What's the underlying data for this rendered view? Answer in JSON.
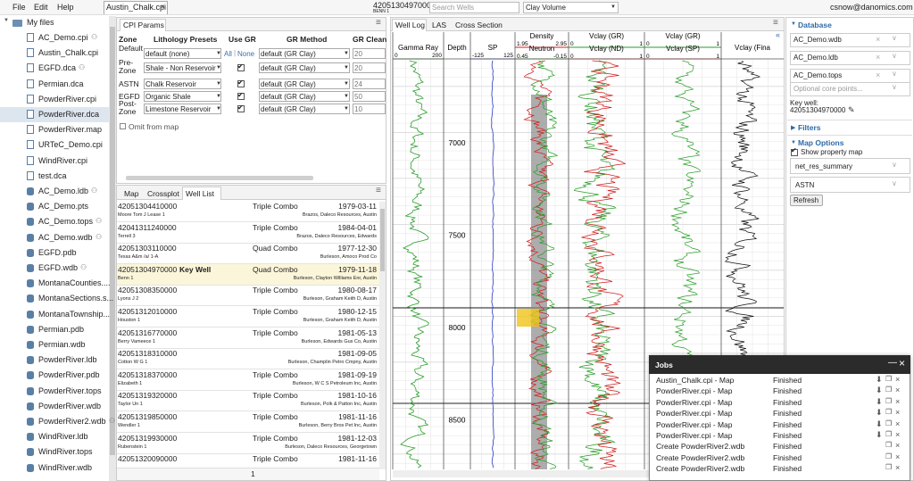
{
  "menu": [
    "File",
    "Edit",
    "Help"
  ],
  "open_tab": "Austin_Chalk.cpi",
  "well_header": {
    "uwi": "42051304970000",
    "name": "BENN 1"
  },
  "search_placeholder": "Search Wells",
  "curve_select": "Clay Volume",
  "user": "csnow@danomics.com",
  "files": {
    "root": "My files",
    "selected": 5,
    "items": [
      {
        "name": "AC_Demo.cpi",
        "shared": true
      },
      {
        "name": "Austin_Chalk.cpi"
      },
      {
        "name": "EGFD.dca",
        "shared": true
      },
      {
        "name": "Permian.dca"
      },
      {
        "name": "PowderRiver.cpi"
      },
      {
        "name": "PowderRiver.dca"
      },
      {
        "name": "PowderRiver.map"
      },
      {
        "name": "URTeC_Demo.cpi"
      },
      {
        "name": "WindRiver.cpi"
      },
      {
        "name": "test.dca"
      },
      {
        "name": "AC_Demo.ldb",
        "db": true,
        "shared": true
      },
      {
        "name": "AC_Demo.pts",
        "db": true
      },
      {
        "name": "AC_Demo.tops",
        "db": true,
        "shared": true
      },
      {
        "name": "AC_Demo.wdb",
        "db": true,
        "shared": true
      },
      {
        "name": "EGFD.pdb",
        "db": true
      },
      {
        "name": "EGFD.wdb",
        "db": true,
        "shared": true
      },
      {
        "name": "MontanaCounties....",
        "db": true
      },
      {
        "name": "MontanaSections.s...",
        "db": true
      },
      {
        "name": "MontanaTownship...",
        "db": true
      },
      {
        "name": "Permian.pdb",
        "db": true
      },
      {
        "name": "Permian.wdb",
        "db": true
      },
      {
        "name": "PowderRiver.ldb",
        "db": true
      },
      {
        "name": "PowderRiver.pdb",
        "db": true
      },
      {
        "name": "PowderRiver.tops",
        "db": true
      },
      {
        "name": "PowderRiver.wdb",
        "db": true
      },
      {
        "name": "PowderRiver2.wdb",
        "db": true,
        "shared": true
      },
      {
        "name": "WindRiver.ldb",
        "db": true
      },
      {
        "name": "WindRiver.tops",
        "db": true
      },
      {
        "name": "WindRiver.wdb",
        "db": true
      }
    ]
  },
  "cpi": {
    "tab": "CPI Params",
    "headers": [
      "Zone",
      "Lithology Presets",
      "Use GR",
      "GR Method",
      "GR Clean"
    ],
    "rows": [
      {
        "zone": "Default",
        "preset": "default (none)",
        "gr_links": [
          "All",
          "None"
        ],
        "method": "default (GR Clay)",
        "clean": "20"
      },
      {
        "zone": "Pre-Zone",
        "preset": "Shale - Non Reservoir",
        "use_gr": true,
        "method": "default (GR Clay)",
        "clean": "20"
      },
      {
        "zone": "ASTN",
        "preset": "Chalk Reservoir",
        "use_gr": true,
        "method": "default (GR Clay)",
        "clean": "24"
      },
      {
        "zone": "EGFD",
        "preset": "Organic Shale",
        "use_gr": true,
        "method": "default (GR Clay)",
        "clean": "50"
      },
      {
        "zone": "Post-Zone",
        "preset": "Limestone Reservoir",
        "use_gr": true,
        "method": "default (GR Clay)",
        "clean": "10"
      }
    ],
    "omit": "Omit from map"
  },
  "well_list": {
    "tabs": [
      "Map",
      "Crossplot",
      "Well List"
    ],
    "active": 2,
    "page": "1",
    "rows": [
      {
        "uwi": "42051304410000",
        "log": "Triple Combo",
        "date": "1979-03-11",
        "lease": "Moore Tom J Lease 1",
        "location": "Brazos, Daleco Resources, Austin"
      },
      {
        "uwi": "42041311240000",
        "log": "Triple Combo",
        "date": "1984-04-01",
        "lease": "Terrell 3",
        "location": "Brazos, Daleco Resources, Edwards"
      },
      {
        "uwi": "42051303110000",
        "log": "Quad Combo",
        "date": "1977-12-30",
        "lease": "Texas A&m /a/ 1-A",
        "location": "Burleson, Amoco Prod Co"
      },
      {
        "uwi": "42051304970000",
        "tag": "Key Well",
        "highlight": true,
        "log": "Quad Combo",
        "date": "1979-11-18",
        "lease": "Benn 1",
        "location": "Burleson, Clayton Williams Enr, Austin"
      },
      {
        "uwi": "42051308350000",
        "log": "Triple Combo",
        "date": "1980-08-17",
        "lease": "Lyons J 2",
        "location": "Burleson, Graham Keith D, Austin"
      },
      {
        "uwi": "42051312010000",
        "log": "Triple Combo",
        "date": "1980-12-15",
        "lease": "Houston 1",
        "location": "Burleson, Graham Keith D, Austin"
      },
      {
        "uwi": "42051316770000",
        "log": "Triple Combo",
        "date": "1981-05-13",
        "lease": "Berry Vameece 1",
        "location": "Burleson, Edwards Gus Co, Austin"
      },
      {
        "uwi": "42051318310000",
        "date": "1981-09-05",
        "lease": "Cotton W G 1",
        "location": "Burleson, Champlin Petro Cmpny, Austin"
      },
      {
        "uwi": "42051318370000",
        "log": "Triple Combo",
        "date": "1981-09-19",
        "lease": "Elizabeth 1",
        "location": "Burleson, W C S Petroleum Inc, Austin"
      },
      {
        "uwi": "42051319320000",
        "log": "Triple Combo",
        "date": "1981-10-16",
        "lease": "Taylor Un 1",
        "location": "Burleson, Polk & Patton Inc, Austin"
      },
      {
        "uwi": "42051319850000",
        "log": "Triple Combo",
        "date": "1981-11-16",
        "lease": "Wendler 1",
        "location": "Burleson, Berry Bros Pet Inc, Austin"
      },
      {
        "uwi": "42051319930000",
        "log": "Triple Combo",
        "date": "1981-12-03",
        "lease": "Rubenstein 1",
        "location": "Burleson, Daleco Resources, Georgetown"
      },
      {
        "uwi": "42051320090000",
        "log": "Triple Combo",
        "date": "1981-11-16"
      }
    ]
  },
  "well_log": {
    "tabs": [
      "Well Log",
      "LAS",
      "Cross Section"
    ],
    "depths": [
      7000,
      7500,
      8000,
      8500
    ],
    "tracks": [
      {
        "title": "Gamma Ray",
        "scale": [
          "0",
          "200"
        ]
      },
      {
        "title": "Depth"
      },
      {
        "title": "SP",
        "scale": [
          "-125",
          "125"
        ]
      },
      {
        "title": "Density",
        "scale": [
          "1.95",
          "2.95"
        ],
        "title2": "Neutron",
        "scale2": [
          "0.45",
          "-0.15"
        ]
      },
      {
        "title": "Vclay (GR)",
        "scale": [
          "0",
          "1"
        ],
        "title2": "Vclay (ND)",
        "scale2": [
          "0",
          "1"
        ]
      },
      {
        "title": "Vclay (GR)",
        "scale": [
          "0",
          "1"
        ],
        "title2": "Vclay (SP)",
        "scale2": [
          "0",
          "1"
        ]
      },
      {
        "title": "Vclay (Fina"
      }
    ]
  },
  "right": {
    "database": "Database",
    "inputs": [
      "AC_Demo.wdb",
      "AC_Demo.ldb",
      "AC_Demo.tops"
    ],
    "core_placeholder": "Optional core points...",
    "key_well_label": "Key well:",
    "key_well": "42051304970000",
    "filters": "Filters",
    "map_options": "Map Options",
    "show_map": "Show property map",
    "selects": [
      "net_res_summary",
      "ASTN"
    ],
    "refresh": "Refresh"
  },
  "jobs": {
    "title": "Jobs",
    "rows": [
      {
        "name": "Austin_Chalk.cpi - Map",
        "status": "Finished",
        "download": true
      },
      {
        "name": "PowderRiver.cpi - Map",
        "status": "Finished",
        "download": true
      },
      {
        "name": "PowderRiver.cpi - Map",
        "status": "Finished",
        "download": true
      },
      {
        "name": "PowderRiver.cpi - Map",
        "status": "Finished",
        "download": true
      },
      {
        "name": "PowderRiver.cpi - Map",
        "status": "Finished",
        "download": true
      },
      {
        "name": "PowderRiver.cpi - Map",
        "status": "Finished",
        "download": true
      },
      {
        "name": "Create PowderRiver2.wdb",
        "status": "Finished"
      },
      {
        "name": "Create PowderRiver2.wdb",
        "status": "Finished"
      },
      {
        "name": "Create PowderRiver2.wdb",
        "status": "Finished"
      }
    ]
  }
}
